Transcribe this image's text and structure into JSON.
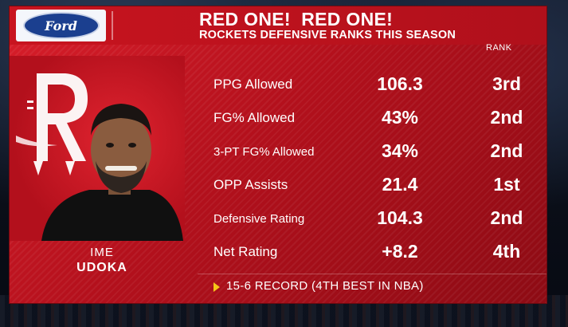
{
  "sponsor": {
    "brand": "Ford"
  },
  "header": {
    "headline": "RED ONE!  RED ONE!",
    "subheadline": "ROCKETS DEFENSIVE RANKS THIS SEASON",
    "rank_column": "RANK"
  },
  "player": {
    "first_name": "IME",
    "last_name": "UDOKA"
  },
  "stats": [
    {
      "label": "PPG Allowed",
      "value": "106.3",
      "rank": "3rd"
    },
    {
      "label": "FG% Allowed",
      "value": "43%",
      "rank": "2nd"
    },
    {
      "label": "3-PT FG% Allowed",
      "value": "34%",
      "rank": "2nd"
    },
    {
      "label": "OPP Assists",
      "value": "21.4",
      "rank": "1st"
    },
    {
      "label": "Defensive Rating",
      "value": "104.3",
      "rank": "2nd"
    },
    {
      "label": "Net Rating",
      "value": "+8.2",
      "rank": "4th"
    }
  ],
  "footer": {
    "record": "15-6 RECORD (4TH BEST IN NBA)"
  },
  "colors": {
    "accent_red": "#c8141f",
    "ford_blue": "#1b3f8f",
    "arrow_gold": "#f5c518"
  },
  "icons": {
    "team_logo": "rockets-r-logo",
    "footer_arrow": "triangle-right-icon"
  }
}
